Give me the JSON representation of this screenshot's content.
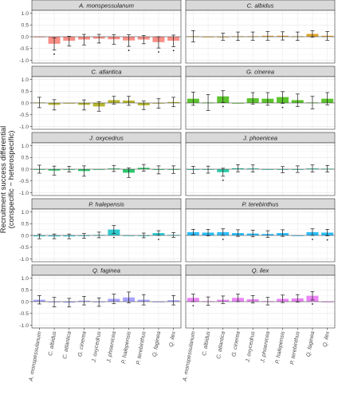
{
  "chart_data": {
    "type": "bar",
    "facet_layout": "5 rows x 2 columns",
    "ylabel_line1": "Recruitment success differential",
    "ylabel_line2": "(conspecific − heterospecific)",
    "yticks": [
      "1.0",
      "0.5",
      "0.0",
      "-0.5",
      "-1.0"
    ],
    "ytick_values": [
      1.0,
      0.5,
      0.0,
      -0.5,
      -1.0
    ],
    "ylim": [
      -1.12,
      1.12
    ],
    "grid": true,
    "categories": [
      "A. monspessulanum",
      "C. albidus",
      "C. atlantica",
      "G. cinerea",
      "J. oxycedrus",
      "J. phoenicea",
      "P. halepensis",
      "P. terebinthus",
      "Q. faginea",
      "Q. ilex"
    ],
    "panels": [
      {
        "name": "A. monspessulanum",
        "color": "#F8766D",
        "values": [
          0,
          -0.3,
          -0.17,
          -0.12,
          -0.08,
          -0.11,
          -0.16,
          -0.12,
          -0.23,
          -0.17
        ],
        "err_low": [
          0,
          -0.57,
          -0.4,
          -0.35,
          -0.27,
          -0.32,
          -0.41,
          -0.3,
          -0.48,
          -0.42
        ],
        "err_high": [
          0,
          -0.05,
          0.02,
          0.1,
          0.1,
          0.08,
          0.08,
          0.05,
          0.0,
          0.07
        ],
        "significant": [
          false,
          true,
          false,
          false,
          false,
          false,
          true,
          false,
          true,
          true
        ]
      },
      {
        "name": "C. albidus",
        "color": "#D89000",
        "values": [
          0.02,
          0,
          0.0,
          0.02,
          0.02,
          0.04,
          0.04,
          0.02,
          0.12,
          0.04
        ],
        "err_low": [
          -0.22,
          0,
          -0.15,
          -0.16,
          -0.15,
          -0.15,
          -0.14,
          -0.16,
          -0.02,
          -0.15
        ],
        "err_high": [
          0.26,
          0,
          0.15,
          0.2,
          0.2,
          0.22,
          0.21,
          0.2,
          0.25,
          0.22
        ],
        "significant": [
          false,
          false,
          false,
          false,
          false,
          false,
          false,
          false,
          false,
          false
        ]
      },
      {
        "name": "C. atlantica",
        "color": "#A3A500",
        "values": [
          0.02,
          -0.08,
          0,
          -0.08,
          -0.15,
          0.12,
          0.1,
          -0.1,
          -0.02,
          0.04
        ],
        "err_low": [
          -0.2,
          -0.3,
          0,
          -0.3,
          -0.35,
          -0.05,
          -0.1,
          -0.28,
          -0.22,
          -0.16
        ],
        "err_high": [
          0.24,
          0.14,
          0,
          0.13,
          0.05,
          0.28,
          0.28,
          0.08,
          0.18,
          0.24
        ],
        "significant": [
          false,
          false,
          false,
          false,
          false,
          false,
          false,
          false,
          false,
          false
        ]
      },
      {
        "name": "G. cinerea",
        "color": "#39B600",
        "values": [
          0.18,
          0.02,
          0.28,
          0,
          0.2,
          0.18,
          0.25,
          0.12,
          0.02,
          0.18
        ],
        "err_low": [
          -0.1,
          -0.32,
          0.02,
          0,
          -0.05,
          -0.1,
          -0.02,
          -0.15,
          -0.25,
          -0.08
        ],
        "err_high": [
          0.46,
          0.36,
          0.52,
          0,
          0.44,
          0.44,
          0.48,
          0.38,
          0.28,
          0.44
        ],
        "significant": [
          false,
          false,
          true,
          false,
          false,
          false,
          true,
          false,
          false,
          false
        ]
      },
      {
        "name": "J. oxycedrus",
        "color": "#00BB4E",
        "values": [
          0.0,
          -0.06,
          0.0,
          -0.08,
          0,
          0.03,
          -0.15,
          0.06,
          -0.03,
          -0.02
        ],
        "err_low": [
          -0.17,
          -0.25,
          -0.12,
          -0.3,
          0,
          -0.1,
          -0.35,
          -0.08,
          -0.2,
          -0.18
        ],
        "err_high": [
          0.17,
          0.13,
          0.12,
          0.14,
          0,
          0.16,
          0.05,
          0.2,
          0.14,
          0.14
        ],
        "significant": [
          false,
          false,
          false,
          false,
          false,
          false,
          false,
          false,
          false,
          false
        ]
      },
      {
        "name": "J. phoenicea",
        "color": "#00BF96",
        "values": [
          -0.03,
          -0.02,
          -0.13,
          0.04,
          0.03,
          0,
          -0.02,
          0.0,
          0.03,
          0.02
        ],
        "err_low": [
          -0.18,
          -0.17,
          -0.3,
          -0.11,
          -0.12,
          0,
          -0.15,
          -0.14,
          -0.12,
          -0.12
        ],
        "err_high": [
          0.12,
          0.13,
          0.04,
          0.19,
          0.18,
          0,
          0.11,
          0.14,
          0.18,
          0.16
        ],
        "significant": [
          false,
          false,
          true,
          false,
          false,
          false,
          false,
          false,
          false,
          false
        ]
      },
      {
        "name": "P. halepensis",
        "color": "#00BFC4",
        "values": [
          -0.04,
          -0.04,
          -0.04,
          -0.02,
          0.02,
          0.25,
          0,
          0.0,
          0.1,
          0.02
        ],
        "err_low": [
          -0.14,
          -0.14,
          -0.14,
          -0.12,
          -0.1,
          0.08,
          0,
          -0.1,
          0.0,
          -0.08
        ],
        "err_high": [
          0.06,
          0.06,
          0.06,
          0.08,
          0.14,
          0.42,
          0,
          0.1,
          0.2,
          0.12
        ],
        "significant": [
          false,
          false,
          false,
          false,
          false,
          true,
          false,
          false,
          true,
          false
        ]
      },
      {
        "name": "P. terebinthus",
        "color": "#00B0F6",
        "values": [
          0.14,
          0.12,
          0.14,
          0.1,
          0.08,
          0.06,
          0.1,
          0,
          0.14,
          0.12
        ],
        "err_low": [
          0.02,
          -0.02,
          0.0,
          -0.04,
          -0.06,
          -0.08,
          -0.04,
          0,
          0.0,
          -0.02
        ],
        "err_high": [
          0.26,
          0.26,
          0.28,
          0.24,
          0.22,
          0.2,
          0.24,
          0,
          0.28,
          0.26
        ],
        "significant": [
          false,
          false,
          true,
          false,
          false,
          false,
          false,
          false,
          true,
          true
        ]
      },
      {
        "name": "Q. faginea",
        "color": "#9590FF",
        "values": [
          0.08,
          -0.02,
          -0.04,
          0.04,
          -0.02,
          0.12,
          0.18,
          0.08,
          0,
          0.06
        ],
        "err_low": [
          -0.1,
          -0.22,
          -0.22,
          -0.14,
          -0.2,
          -0.08,
          -0.05,
          -0.14,
          0,
          -0.14
        ],
        "err_high": [
          0.26,
          0.18,
          0.14,
          0.22,
          0.16,
          0.32,
          0.41,
          0.3,
          0,
          0.26
        ],
        "significant": [
          false,
          false,
          false,
          false,
          false,
          false,
          false,
          false,
          false,
          false
        ]
      },
      {
        "name": "Q. ilex",
        "color": "#E76BF3",
        "values": [
          0.16,
          0.02,
          0.08,
          0.16,
          0.1,
          0.02,
          0.12,
          0.14,
          0.25,
          0
        ],
        "err_low": [
          0.0,
          -0.16,
          -0.08,
          0.0,
          -0.06,
          -0.14,
          -0.04,
          -0.02,
          0.07,
          0
        ],
        "err_high": [
          0.32,
          0.2,
          0.24,
          0.32,
          0.26,
          0.18,
          0.28,
          0.3,
          0.43,
          0
        ],
        "significant": [
          true,
          false,
          false,
          false,
          false,
          false,
          false,
          false,
          true,
          false
        ]
      }
    ]
  }
}
